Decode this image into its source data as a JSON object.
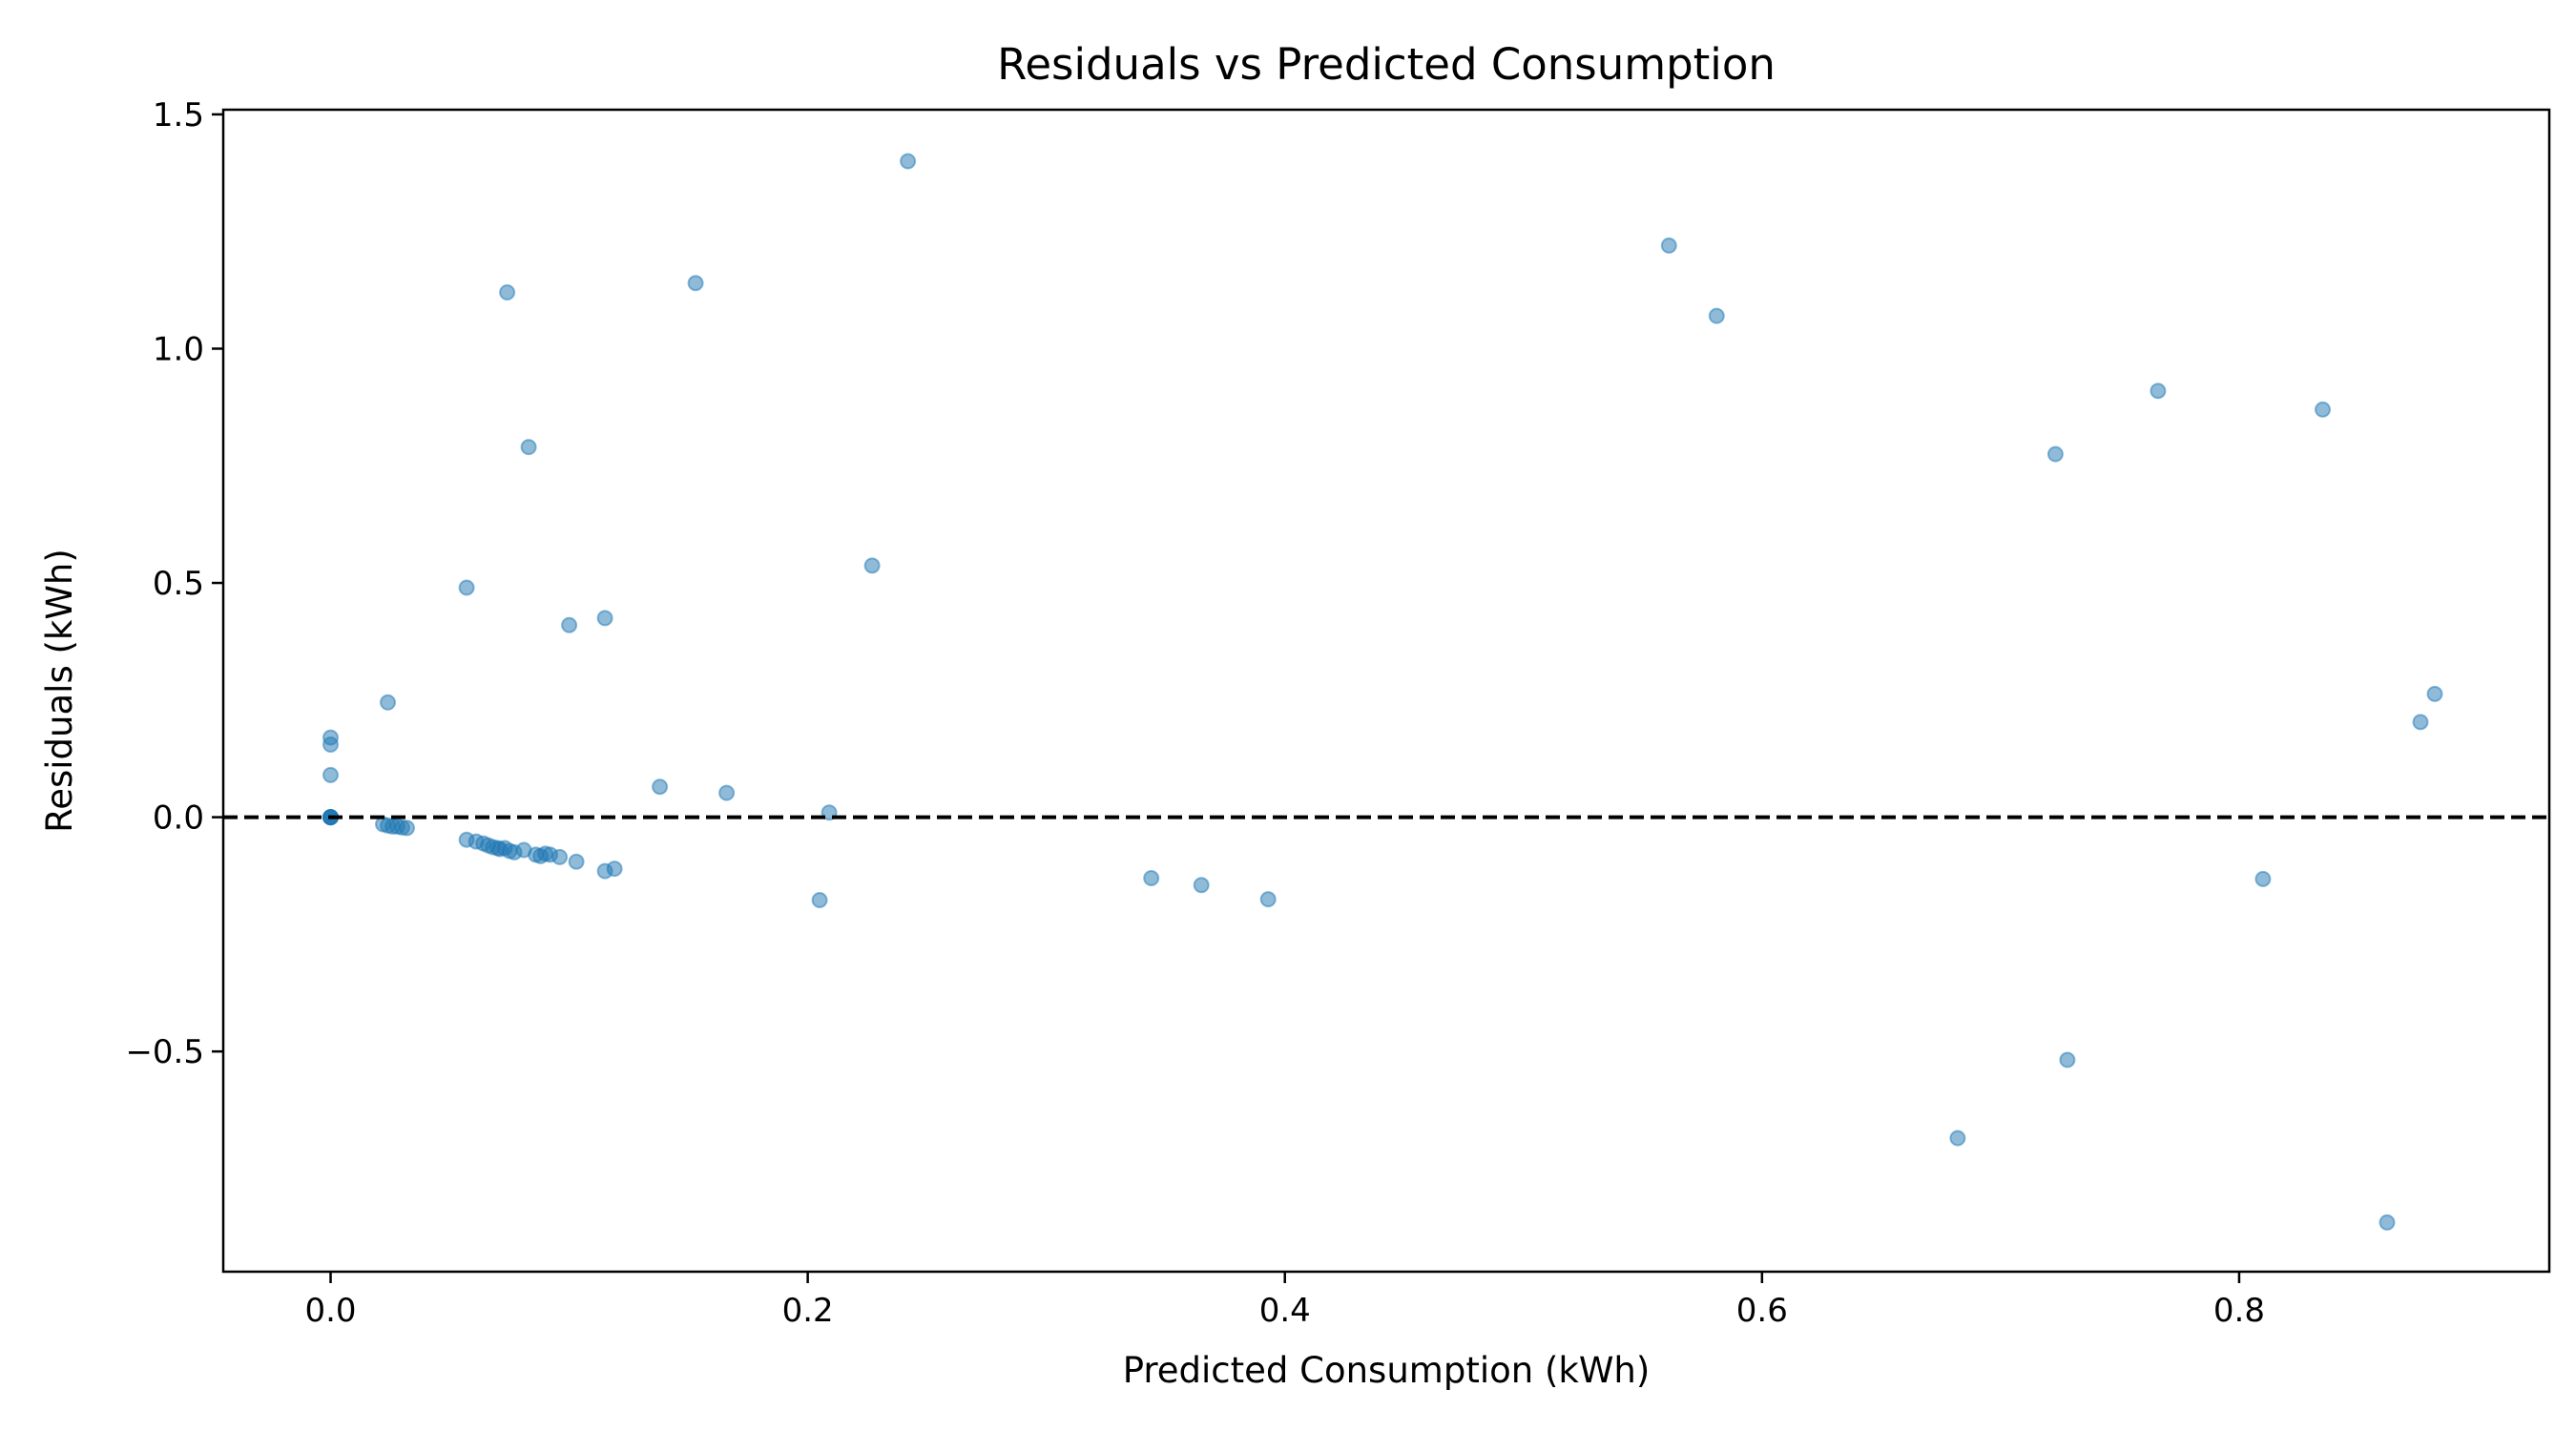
{
  "chart_data": {
    "type": "scatter",
    "title": "Residuals vs Predicted Consumption",
    "xlabel": "Predicted Consumption (kWh)",
    "ylabel": "Residuals (kWh)",
    "xlim": [
      -0.045,
      0.93
    ],
    "ylim": [
      -0.97,
      1.51
    ],
    "xticks": [
      {
        "value": 0.0,
        "label": "0.0"
      },
      {
        "value": 0.2,
        "label": "0.2"
      },
      {
        "value": 0.4,
        "label": "0.4"
      },
      {
        "value": 0.6,
        "label": "0.6"
      },
      {
        "value": 0.8,
        "label": "0.8"
      }
    ],
    "yticks": [
      {
        "value": -0.5,
        "label": "−0.5"
      },
      {
        "value": 0.0,
        "label": "0.0"
      },
      {
        "value": 0.5,
        "label": "0.5"
      },
      {
        "value": 1.0,
        "label": "1.0"
      },
      {
        "value": 1.5,
        "label": "1.5"
      }
    ],
    "grid": false,
    "reference_line": {
      "y": 0.0,
      "style": "dashed",
      "color": "#000000"
    },
    "point_color": "#1f77b4",
    "point_alpha": 0.5,
    "points": [
      [
        0.0,
        0.0
      ],
      [
        0.0,
        0.0
      ],
      [
        0.0,
        0.0
      ],
      [
        0.0,
        0.0
      ],
      [
        0.0,
        0.0
      ],
      [
        0.0,
        0.0
      ],
      [
        0.0,
        0.17
      ],
      [
        0.0,
        0.155
      ],
      [
        0.0,
        0.09
      ],
      [
        0.024,
        0.245
      ],
      [
        0.022,
        -0.015
      ],
      [
        0.024,
        -0.018
      ],
      [
        0.026,
        -0.02
      ],
      [
        0.028,
        -0.02
      ],
      [
        0.03,
        -0.022
      ],
      [
        0.032,
        -0.023
      ],
      [
        0.057,
        0.49
      ],
      [
        0.057,
        -0.048
      ],
      [
        0.061,
        -0.052
      ],
      [
        0.064,
        -0.056
      ],
      [
        0.066,
        -0.06
      ],
      [
        0.068,
        -0.064
      ],
      [
        0.07,
        -0.066
      ],
      [
        0.071,
        -0.068
      ],
      [
        0.073,
        -0.066
      ],
      [
        0.075,
        -0.072
      ],
      [
        0.077,
        -0.075
      ],
      [
        0.081,
        -0.07
      ],
      [
        0.074,
        1.12
      ],
      [
        0.083,
        0.79
      ],
      [
        0.086,
        -0.08
      ],
      [
        0.088,
        -0.083
      ],
      [
        0.09,
        -0.078
      ],
      [
        0.092,
        -0.08
      ],
      [
        0.096,
        -0.085
      ],
      [
        0.1,
        0.41
      ],
      [
        0.103,
        -0.095
      ],
      [
        0.115,
        0.425
      ],
      [
        0.115,
        -0.115
      ],
      [
        0.119,
        -0.11
      ],
      [
        0.138,
        0.065
      ],
      [
        0.153,
        1.14
      ],
      [
        0.166,
        0.052
      ],
      [
        0.205,
        -0.177
      ],
      [
        0.209,
        0.01
      ],
      [
        0.227,
        0.537
      ],
      [
        0.242,
        1.4
      ],
      [
        0.344,
        -0.13
      ],
      [
        0.365,
        -0.145
      ],
      [
        0.393,
        -0.175
      ],
      [
        0.561,
        1.22
      ],
      [
        0.581,
        1.07
      ],
      [
        0.682,
        -0.685
      ],
      [
        0.723,
        0.775
      ],
      [
        0.728,
        -0.518
      ],
      [
        0.766,
        0.91
      ],
      [
        0.81,
        -0.132
      ],
      [
        0.835,
        0.87
      ],
      [
        0.862,
        -0.865
      ],
      [
        0.876,
        0.203
      ],
      [
        0.882,
        0.263
      ]
    ]
  }
}
